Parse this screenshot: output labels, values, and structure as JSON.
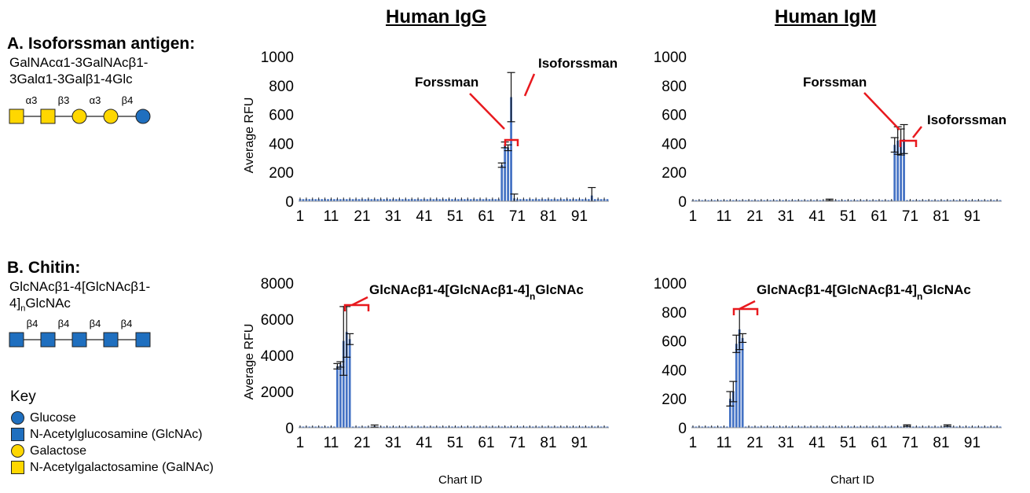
{
  "column_titles": {
    "igg": "Human IgG",
    "igm": "Human IgM"
  },
  "sections": {
    "a": {
      "title": "A. Isoforssman antigen:",
      "line1": "GalNAcα1-3GalNAcβ1-",
      "line2": "3Galα1-3Galβ1-4Glc",
      "linkages": [
        "α3",
        "β3",
        "α3",
        "β4"
      ]
    },
    "b": {
      "title": "B. Chitin:",
      "line1": "GlcNAcβ1-4[GlcNAcβ1-",
      "line2_pre": "4]",
      "line2_sub": "n",
      "line2_post": "GlcNAc",
      "linkages": [
        "β4",
        "β4",
        "β4",
        "β4"
      ]
    }
  },
  "key": {
    "title": "Key",
    "items": [
      {
        "label": "Glucose",
        "shape": "circle",
        "color": "#1f6fbf"
      },
      {
        "label": "N-Acetylglucosamine (GlcNAc)",
        "shape": "square",
        "color": "#1f6fbf"
      },
      {
        "label": "Galactose",
        "shape": "circle",
        "color": "#ffd700"
      },
      {
        "label": "N-Acetylgalactosamine (GalNAc)",
        "shape": "square",
        "color": "#ffd700"
      }
    ]
  },
  "colors": {
    "bar": "#4472c4",
    "bracket": "#e8191e",
    "glc": "#1f6fbf",
    "gal": "#ffd700"
  },
  "chart_data": [
    {
      "type": "bar",
      "panel": "A-IgG",
      "ylabel": "Average RFU",
      "xlabel": "",
      "ylim": [
        0,
        1000
      ],
      "yticks": [
        0,
        200,
        400,
        600,
        800,
        1000
      ],
      "xticks": [
        1,
        11,
        21,
        31,
        41,
        51,
        61,
        71,
        81,
        91
      ],
      "n": 100,
      "baseline": 15,
      "highlights": [
        {
          "x": 66,
          "y": 250,
          "err": 15
        },
        {
          "x": 67,
          "y": 390,
          "err": 20
        },
        {
          "x": 68,
          "y": 370,
          "err": 20
        },
        {
          "x": 69,
          "y": 720,
          "err": 170
        },
        {
          "x": 70,
          "y": 20,
          "err": 30
        },
        {
          "x": 95,
          "y": 40,
          "err": 55
        }
      ],
      "annotations": [
        {
          "text": "Forssman",
          "sub": "",
          "post": ""
        },
        {
          "text": "Isoforssman",
          "sub": "",
          "post": ""
        }
      ]
    },
    {
      "type": "bar",
      "panel": "A-IgM",
      "ylabel": "",
      "xlabel": "",
      "ylim": [
        0,
        1000
      ],
      "yticks": [
        0,
        200,
        400,
        600,
        800,
        1000
      ],
      "xticks": [
        1,
        11,
        21,
        31,
        41,
        51,
        61,
        71,
        81,
        91
      ],
      "n": 100,
      "baseline": 5,
      "highlights": [
        {
          "x": 66,
          "y": 390,
          "err": 50
        },
        {
          "x": 67,
          "y": 420,
          "err": 95
        },
        {
          "x": 68,
          "y": 410,
          "err": 90
        },
        {
          "x": 69,
          "y": 430,
          "err": 100
        },
        {
          "x": 45,
          "y": 10,
          "err": 5
        }
      ],
      "annotations": [
        {
          "text": "Forssman",
          "sub": "",
          "post": ""
        },
        {
          "text": "Isoforssman",
          "sub": "",
          "post": ""
        }
      ]
    },
    {
      "type": "bar",
      "panel": "B-IgG",
      "ylabel": "Average RFU",
      "xlabel": "Chart ID",
      "ylim": [
        0,
        8000
      ],
      "yticks": [
        0,
        2000,
        4000,
        6000,
        8000
      ],
      "xticks": [
        1,
        11,
        21,
        31,
        41,
        51,
        61,
        71,
        81,
        91
      ],
      "n": 100,
      "baseline": 40,
      "highlights": [
        {
          "x": 13,
          "y": 3400,
          "err": 150
        },
        {
          "x": 14,
          "y": 3500,
          "err": 150
        },
        {
          "x": 15,
          "y": 4800,
          "err": 1900
        },
        {
          "x": 16,
          "y": 5300,
          "err": 1400
        },
        {
          "x": 17,
          "y": 4900,
          "err": 300
        },
        {
          "x": 25,
          "y": 90,
          "err": 60
        }
      ],
      "annotations": [
        {
          "text": "GlcNAcβ1-4[GlcNAcβ1-4]",
          "sub": "n",
          "post": "GlcNAc"
        }
      ]
    },
    {
      "type": "bar",
      "panel": "B-IgM",
      "ylabel": "",
      "xlabel": "Chart ID",
      "ylim": [
        0,
        1000
      ],
      "yticks": [
        0,
        200,
        400,
        600,
        800,
        1000
      ],
      "xticks": [
        1,
        11,
        21,
        31,
        41,
        51,
        61,
        71,
        81,
        91
      ],
      "n": 100,
      "baseline": 5,
      "highlights": [
        {
          "x": 13,
          "y": 200,
          "err": 50
        },
        {
          "x": 14,
          "y": 250,
          "err": 70
        },
        {
          "x": 15,
          "y": 580,
          "err": 60
        },
        {
          "x": 16,
          "y": 680,
          "err": 140
        },
        {
          "x": 17,
          "y": 620,
          "err": 30
        },
        {
          "x": 70,
          "y": 15,
          "err": 5
        },
        {
          "x": 83,
          "y": 15,
          "err": 5
        }
      ],
      "annotations": [
        {
          "text": "GlcNAcβ1-4[GlcNAcβ1-4]",
          "sub": "n",
          "post": "GlcNAc"
        }
      ]
    }
  ]
}
